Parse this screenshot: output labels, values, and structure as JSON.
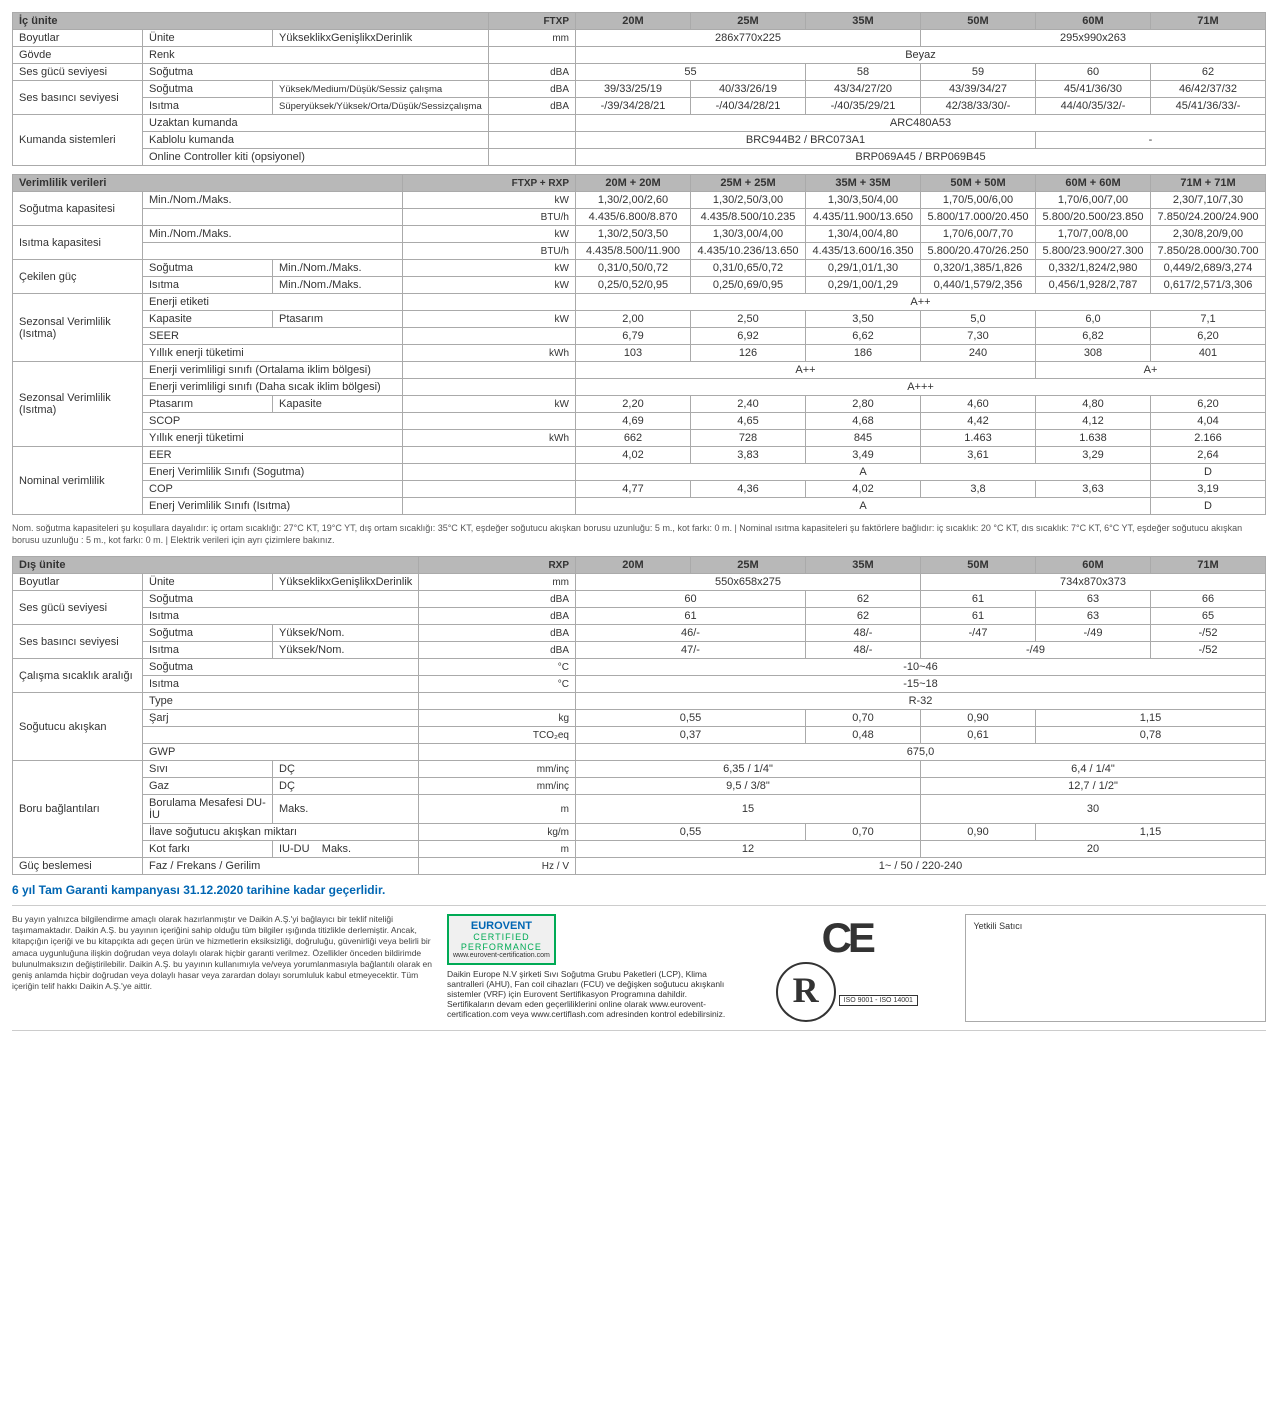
{
  "models": [
    "20M",
    "25M",
    "35M",
    "50M",
    "60M",
    "71M"
  ],
  "table1": {
    "title": "İç ünite",
    "model_prefix": "FTXP",
    "rows": {
      "boyutlar": {
        "cat": "Boyutlar",
        "sub": "Ünite",
        "sub2": "YükseklikxGenişlikxDerinlik",
        "unit": "mm",
        "span": [
          {
            "c": 3,
            "v": "286x770x225"
          },
          {
            "c": 3,
            "v": "295x990x263"
          }
        ]
      },
      "govde": {
        "cat": "Gövde",
        "sub": "Renk",
        "span": [
          {
            "c": 6,
            "v": "Beyaz"
          }
        ]
      },
      "sesgucu": {
        "cat": "Ses gücü seviyesi",
        "sub": "Soğutma",
        "unit": "dBA",
        "span": [
          {
            "c": 2,
            "v": "55"
          },
          {
            "c": 1,
            "v": "58"
          },
          {
            "c": 1,
            "v": "59"
          },
          {
            "c": 1,
            "v": "60"
          },
          {
            "c": 1,
            "v": "62"
          }
        ]
      },
      "sesbas_sog": {
        "cat": "Ses basıncı seviyesi",
        "sub": "Soğutma",
        "sub2": "Yüksek/Medium/Düşük/Sessiz çalışma",
        "sub2_small": true,
        "unit": "dBA",
        "vals": [
          "39/33/25/19",
          "40/33/26/19",
          "43/34/27/20",
          "43/39/34/27",
          "45/41/36/30",
          "46/42/37/32"
        ]
      },
      "sesbas_isi": {
        "sub": "Isıtma",
        "sub2": "Süperyüksek/Yüksek/Orta/Düşük/Sessizçalışma",
        "sub2_small": true,
        "unit": "dBA",
        "vals": [
          "-/39/34/28/21",
          "-/40/34/28/21",
          "-/40/35/29/21",
          "42/38/33/30/-",
          "44/40/35/32/-",
          "45/41/36/33/-"
        ]
      },
      "kumanda1": {
        "cat": "Kumanda sistemleri",
        "sub": "Uzaktan kumanda",
        "span": [
          {
            "c": 6,
            "v": "ARC480A53"
          }
        ]
      },
      "kumanda2": {
        "sub": "Kablolu kumanda",
        "span": [
          {
            "c": 4,
            "v": "BRC944B2 / BRC073A1"
          },
          {
            "c": 2,
            "v": "-"
          }
        ]
      },
      "kumanda3": {
        "sub": "Online Controller kiti (opsiyonel)",
        "span": [
          {
            "c": 6,
            "v": "BRP069A45 / BRP069B45"
          }
        ]
      }
    }
  },
  "table2": {
    "title": "Verimlilik verileri",
    "model_prefix": "FTXP + RXP",
    "model_suffix": [
      "20M + 20M",
      "25M + 25M",
      "35M + 35M",
      "50M + 50M",
      "60M + 60M",
      "71M + 71M"
    ],
    "rows": {
      "sog_kw": {
        "cat": "Soğutma kapasitesi",
        "sub": "Min./Nom./Maks.",
        "unit": "kW",
        "vals": [
          "1,30/2,00/2,60",
          "1,30/2,50/3,00",
          "1,30/3,50/4,00",
          "1,70/5,00/6,00",
          "1,70/6,00/7,00",
          "2,30/7,10/7,30"
        ]
      },
      "sog_btu": {
        "unit": "BTU/h",
        "vals": [
          "4.435/6.800/8.870",
          "4.435/8.500/10.235",
          "4.435/11.900/13.650",
          "5.800/17.000/20.450",
          "5.800/20.500/23.850",
          "7.850/24.200/24.900"
        ]
      },
      "isi_kw": {
        "cat": "Isıtma kapasitesi",
        "sub": "Min./Nom./Maks.",
        "unit": "kW",
        "vals": [
          "1,30/2,50/3,50",
          "1,30/3,00/4,00",
          "1,30/4,00/4,80",
          "1,70/6,00/7,70",
          "1,70/7,00/8,00",
          "2,30/8,20/9,00"
        ]
      },
      "isi_btu": {
        "unit": "BTU/h",
        "vals": [
          "4.435/8.500/11.900",
          "4.435/10.236/13.650",
          "4.435/13.600/16.350",
          "5.800/20.470/26.250",
          "5.800/23.900/27.300",
          "7.850/28.000/30.700"
        ]
      },
      "cek_sog": {
        "cat": "Çekilen güç",
        "sub": "Soğutma",
        "sub2": "Min./Nom./Maks.",
        "unit": "kW",
        "vals": [
          "0,31/0,50/0,72",
          "0,31/0,65/0,72",
          "0,29/1,01/1,30",
          "0,320/1,385/1,826",
          "0,332/1,824/2,980",
          "0,449/2,689/3,274"
        ]
      },
      "cek_isi": {
        "sub": "Isıtma",
        "sub2": "Min./Nom./Maks.",
        "unit": "kW",
        "vals": [
          "0,25/0,52/0,95",
          "0,25/0,69/0,95",
          "0,29/1,00/1,29",
          "0,440/1,579/2,356",
          "0,456/1,928/2,787",
          "0,617/2,571/3,306"
        ]
      },
      "sv1_etiket": {
        "cat": "Sezonsal Verimlilik (Isıtma)",
        "sub": "Enerji etiketi",
        "span": [
          {
            "c": 6,
            "v": "A++"
          }
        ]
      },
      "sv1_kap": {
        "sub": "Kapasite",
        "sub2": "Ptasarım",
        "unit": "kW",
        "vals": [
          "2,00",
          "2,50",
          "3,50",
          "5,0",
          "6,0",
          "7,1"
        ]
      },
      "sv1_seer": {
        "sub": "SEER",
        "vals": [
          "6,79",
          "6,92",
          "6,62",
          "7,30",
          "6,82",
          "6,20"
        ]
      },
      "sv1_yil": {
        "sub": "Yıllık enerji tüketimi",
        "unit": "kWh",
        "vals": [
          "103",
          "126",
          "186",
          "240",
          "308",
          "401"
        ]
      },
      "sv2_ort": {
        "cat": "Sezonsal Verimlilik (Isıtma)",
        "sub": "Enerji verimliligi sınıfı (Ortalama iklim bölgesi)",
        "span": [
          {
            "c": 4,
            "v": "A++"
          },
          {
            "c": 2,
            "v": "A+"
          }
        ]
      },
      "sv2_sic": {
        "sub": "Enerji verimliligi sınıfı (Daha sıcak iklim bölgesi)",
        "span": [
          {
            "c": 6,
            "v": "A+++"
          }
        ]
      },
      "sv2_pt": {
        "sub": "Ptasarım",
        "sub2": "Kapasite",
        "unit": "kW",
        "vals": [
          "2,20",
          "2,40",
          "2,80",
          "4,60",
          "4,80",
          "6,20"
        ]
      },
      "sv2_scop": {
        "sub": "SCOP",
        "vals": [
          "4,69",
          "4,65",
          "4,68",
          "4,42",
          "4,12",
          "4,04"
        ]
      },
      "sv2_yil": {
        "sub": "Yıllık enerji tüketimi",
        "unit": "kWh",
        "vals": [
          "662",
          "728",
          "845",
          "1.463",
          "1.638",
          "2.166"
        ]
      },
      "nv_eer": {
        "cat": "Nominal verimlilik",
        "sub": "EER",
        "vals": [
          "4,02",
          "3,83",
          "3,49",
          "3,61",
          "3,29",
          "2,64"
        ]
      },
      "nv_evs_sog": {
        "sub": "Enerj Verimlilik Sınıfı (Sogutma)",
        "span": [
          {
            "c": 5,
            "v": "A"
          },
          {
            "c": 1,
            "v": "D"
          }
        ]
      },
      "nv_cop": {
        "sub": "COP",
        "vals": [
          "4,77",
          "4,36",
          "4,02",
          "3,8",
          "3,63",
          "3,19"
        ]
      },
      "nv_evs_isi": {
        "sub": "Enerj Verimlilik Sınıfı (Isıtma)",
        "span": [
          {
            "c": 5,
            "v": "A"
          },
          {
            "c": 1,
            "v": "D"
          }
        ]
      }
    }
  },
  "footnote": "Nom. soğutma kapasiteleri şu koşullara dayalıdır: iç ortam sıcaklığı: 27°C KT, 19°C YT, dış ortam sıcaklığı: 35°C KT, eşdeğer soğutucu akışkan borusu uzunluğu: 5 m., kot farkı: 0 m. | Nominal ısıtma kapasiteleri şu faktörlere bağlıdır: iç sıcaklık: 20 °C KT, dıs sıcaklık: 7°C KT, 6°C YT, eşdeğer soğutucu akışkan borusu uzunluğu : 5 m., kot farkı: 0 m. | Elektrik verileri için ayrı çizimlere bakınız.",
  "table3": {
    "title": "Dış ünite",
    "model_prefix": "RXP",
    "rows": {
      "boy": {
        "cat": "Boyutlar",
        "sub": "Ünite",
        "sub2": "YükseklikxGenişlikxDerinlik",
        "unit": "mm",
        "span": [
          {
            "c": 3,
            "v": "550x658x275"
          },
          {
            "c": 3,
            "v": "734x870x373"
          }
        ]
      },
      "sg_sog": {
        "cat": "Ses gücü seviyesi",
        "sub": "Soğutma",
        "unit": "dBA",
        "span": [
          {
            "c": 2,
            "v": "60"
          },
          {
            "c": 1,
            "v": "62"
          },
          {
            "c": 1,
            "v": "61"
          },
          {
            "c": 1,
            "v": "63"
          },
          {
            "c": 1,
            "v": "66"
          }
        ]
      },
      "sg_isi": {
        "sub": "Isıtma",
        "unit": "dBA",
        "span": [
          {
            "c": 2,
            "v": "61"
          },
          {
            "c": 1,
            "v": "62"
          },
          {
            "c": 1,
            "v": "61"
          },
          {
            "c": 1,
            "v": "63"
          },
          {
            "c": 1,
            "v": "65"
          }
        ]
      },
      "sb_sog": {
        "cat": "Ses basıncı seviyesi",
        "sub": "Soğutma",
        "sub2": "Yüksek/Nom.",
        "unit": "dBA",
        "span": [
          {
            "c": 2,
            "v": "46/-"
          },
          {
            "c": 1,
            "v": "48/-"
          },
          {
            "c": 1,
            "v": "-/47"
          },
          {
            "c": 1,
            "v": "-/49"
          },
          {
            "c": 1,
            "v": "-/52"
          }
        ]
      },
      "sb_isi": {
        "sub": "Isıtma",
        "sub2": "Yüksek/Nom.",
        "unit": "dBA",
        "span": [
          {
            "c": 2,
            "v": "47/-"
          },
          {
            "c": 1,
            "v": "48/-"
          },
          {
            "c": 2,
            "v": "-/49"
          },
          {
            "c": 1,
            "v": "-/52"
          }
        ]
      },
      "cs_sog": {
        "cat": "Çalışma sıcaklık aralığı",
        "sub": "Soğutma",
        "unit": "°C",
        "span": [
          {
            "c": 6,
            "v": "-10~46"
          }
        ]
      },
      "cs_isi": {
        "sub": "Isıtma",
        "unit": "°C",
        "span": [
          {
            "c": 6,
            "v": "-15~18"
          }
        ]
      },
      "sa_type": {
        "cat": "Soğutucu akışkan",
        "sub": "Type",
        "span": [
          {
            "c": 6,
            "v": "R-32"
          }
        ]
      },
      "sa_sarj": {
        "sub": "Şarj",
        "unit": "kg",
        "span": [
          {
            "c": 2,
            "v": "0,55"
          },
          {
            "c": 1,
            "v": "0,70"
          },
          {
            "c": 1,
            "v": "0,90"
          },
          {
            "c": 2,
            "v": "1,15"
          }
        ]
      },
      "sa_tco2": {
        "unit": "TCO₂eq",
        "span": [
          {
            "c": 2,
            "v": "0,37"
          },
          {
            "c": 1,
            "v": "0,48"
          },
          {
            "c": 1,
            "v": "0,61"
          },
          {
            "c": 2,
            "v": "0,78"
          }
        ]
      },
      "sa_gwp": {
        "sub": "GWP",
        "span": [
          {
            "c": 6,
            "v": "675,0"
          }
        ]
      },
      "bb_sivi": {
        "cat": "Boru bağlantıları",
        "sub": "Sıvı",
        "sub2": "DÇ",
        "unit": "mm/inç",
        "span": [
          {
            "c": 3,
            "v": "6,35 / 1/4\""
          },
          {
            "c": 3,
            "v": "6,4 / 1/4\""
          }
        ]
      },
      "bb_gaz": {
        "sub": "Gaz",
        "sub2": "DÇ",
        "unit": "mm/inç",
        "span": [
          {
            "c": 3,
            "v": "9,5 / 3/8\""
          },
          {
            "c": 3,
            "v": "12,7 / 1/2\""
          }
        ]
      },
      "bb_bor": {
        "sub": "Borulama Mesafesi DU-İU",
        "sub2": "Maks.",
        "unit": "m",
        "span": [
          {
            "c": 3,
            "v": "15"
          },
          {
            "c": 3,
            "v": "30"
          }
        ]
      },
      "bb_ilave": {
        "sub": "İlave soğutucu akışkan miktarı",
        "unit": "kg/m",
        "span": [
          {
            "c": 2,
            "v": "0,55"
          },
          {
            "c": 1,
            "v": "0,70"
          },
          {
            "c": 1,
            "v": "0,90"
          },
          {
            "c": 2,
            "v": "1,15"
          }
        ]
      },
      "bb_kot": {
        "sub": "Kot farkı",
        "sub2": "IU-DU",
        "sub3": "Maks.",
        "unit": "m",
        "span": [
          {
            "c": 3,
            "v": "12"
          },
          {
            "c": 3,
            "v": "20"
          }
        ]
      },
      "guc": {
        "cat": "Güç beslemesi",
        "sub": "Faz / Frekans / Gerilim",
        "unit": "Hz / V",
        "span": [
          {
            "c": 6,
            "v": "1~ / 50 / 220-240"
          }
        ]
      }
    }
  },
  "footer": {
    "warranty": "6 yıl Tam Garanti kampanyası 31.12.2020 tarihine kadar geçerlidir.",
    "disclaimer": "Bu yayın yalnızca bilgilendirme amaçlı olarak hazırlanmıştır ve Daikin A.Ş.'yi bağlayıcı bir teklif niteliği taşımamaktadır. Daikin A.Ş. bu yayının içeriğini sahip olduğu tüm bilgiler ışığında titizlikle derlemiştir. Ancak, kitapçığın içeriği ve bu kitapçıkta adı geçen ürün ve hizmetlerin eksiksizliği, doğruluğu, güvenirliği veya belirli bir amaca uygunluğuna ilişkin doğrudan veya dolaylı olarak hiçbir garanti verilmez. Özellikler önceden bildirimde bulunulmaksızın değiştirilebilir. Daikin A.Ş. bu yayının kullanımıyla ve/veya yorumlanmasıyla bağlantılı olarak en geniş anlamda hiçbir doğrudan veya dolaylı hasar veya zarardan dolayı sorumluluk kabul etmeyecektir. Tüm içeriğin telif hakkı Daikin A.Ş.'ye aittir.",
    "eurovent_title": "EUROVENT",
    "eurovent_sub1": "CERTIFIED",
    "eurovent_sub2": "PERFORMANCE",
    "eurovent_url": "www.eurovent-certification.com",
    "eurovent_text": "Daikin Europe N.V şirketi Sıvı Soğutma Grubu Paketleri (LCP), Klima santralleri (AHU), Fan coil cihazları (FCU) ve değişken soğutucu akışkanlı sistemler (VRF) için Eurovent Sertifikasyon Programına dahildir. Sertifikaların devam eden geçerliliklerini online olarak www.eurovent-certification.com veya www.certiflash.com adresinden kontrol edebilirsiniz.",
    "ce": "CE",
    "iso": "R",
    "iso_label": "ISO 9001 - ISO 14001",
    "dealer": "Yetkili Satıcı"
  }
}
